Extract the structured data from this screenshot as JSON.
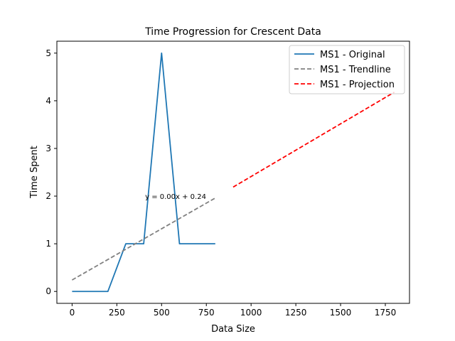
{
  "chart_data": {
    "type": "line",
    "title": "Time Progression for Crescent Data",
    "xlabel": "Data Size",
    "ylabel": "Time Spent",
    "xlim": [
      -85,
      1885
    ],
    "ylim": [
      -0.25,
      5.25
    ],
    "x_ticks": [
      0,
      250,
      500,
      750,
      1000,
      1250,
      1500,
      1750
    ],
    "y_ticks": [
      0,
      1,
      2,
      3,
      4,
      5
    ],
    "grid": false,
    "legend_position": "top-right",
    "annotation": {
      "text": "y = 0.00x + 0.24",
      "x": 400,
      "y": 2.0
    },
    "series": [
      {
        "name": "MS1 - Original",
        "style": "solid",
        "color": "#1f77b4",
        "x": [
          0,
          100,
          200,
          300,
          400,
          500,
          600,
          700,
          800
        ],
        "y": [
          0,
          0,
          0,
          1,
          1,
          5,
          1,
          1,
          1
        ]
      },
      {
        "name": "MS1 - Trendline",
        "style": "dashed",
        "color": "#808080",
        "x": [
          0,
          800
        ],
        "y": [
          0.24,
          1.96
        ]
      },
      {
        "name": "MS1 - Projection",
        "style": "dashed",
        "color": "#ff0000",
        "x": [
          900,
          1800
        ],
        "y": [
          2.19,
          4.18
        ]
      }
    ]
  }
}
